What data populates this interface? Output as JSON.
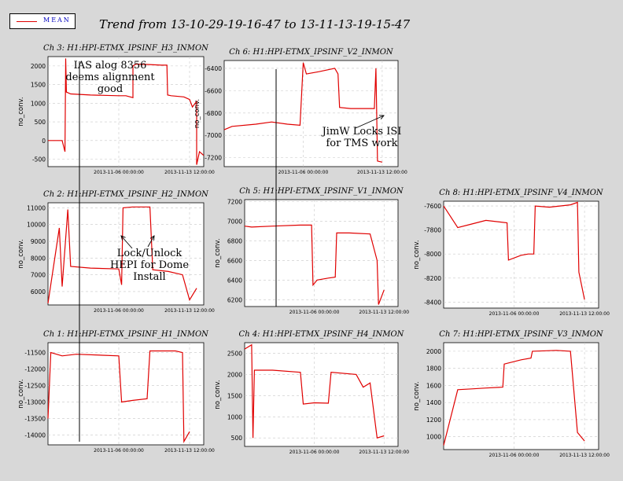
{
  "legend": {
    "label": "MEAN",
    "color": "#e00000"
  },
  "title": "Trend from 13-10-29-19-16-47 to 13-11-13-19-15-47",
  "annotations": [
    {
      "lines": [
        "IAS alog 8356",
        "deems alignment",
        "good"
      ]
    },
    {
      "lines": [
        "JimW Locks ISI",
        "for TMS work"
      ]
    },
    {
      "lines": [
        "Lock/Unlock",
        "HEPI for Dome",
        "Install"
      ]
    }
  ],
  "chart_data": [
    {
      "type": "line",
      "title": "Ch 3: H1:HPI-ETMX_IPSINF_H3_INMON",
      "ylabel": "no_conv.",
      "yticks": [
        -500,
        0,
        500,
        1000,
        1500,
        2000
      ],
      "ylim": [
        -700,
        2250
      ],
      "xticks": [
        "2013-11-06 00:00:00",
        "2013-11-13 12:00:00"
      ],
      "series": [
        {
          "values": [
            [
              0,
              0
            ],
            [
              0.1,
              0
            ],
            [
              0.12,
              -300
            ],
            [
              0.125,
              2200
            ],
            [
              0.13,
              1300
            ],
            [
              0.16,
              1250
            ],
            [
              0.3,
              1220
            ],
            [
              0.5,
              1200
            ],
            [
              0.55,
              1200
            ],
            [
              0.6,
              1150
            ],
            [
              0.6,
              2000
            ],
            [
              0.62,
              2050
            ],
            [
              0.7,
              2040
            ],
            [
              0.8,
              2020
            ],
            [
              0.84,
              2020
            ],
            [
              0.845,
              1220
            ],
            [
              0.87,
              1200
            ],
            [
              0.96,
              1170
            ],
            [
              1.0,
              1100
            ],
            [
              1.02,
              900
            ],
            [
              1.05,
              1050
            ],
            [
              1.05,
              -650
            ],
            [
              1.07,
              -300
            ],
            [
              1.1,
              -400
            ]
          ]
        }
      ]
    },
    {
      "type": "line",
      "title": "Ch 6: H1:HPI-ETMX_IPSINF_V2_INMON",
      "ylabel": "no_conv.",
      "yticks": [
        -7200,
        -7000,
        -6800,
        -6600,
        -6400
      ],
      "ylim": [
        -7280,
        -6330
      ],
      "xticks": [
        "2013-11-06 00:00:00",
        "2013-11-13 12:00:00"
      ],
      "series": [
        {
          "values": [
            [
              0,
              -6950
            ],
            [
              0.05,
              -6920
            ],
            [
              0.2,
              -6900
            ],
            [
              0.3,
              -6880
            ],
            [
              0.4,
              -6900
            ],
            [
              0.48,
              -6910
            ],
            [
              0.5,
              -6350
            ],
            [
              0.52,
              -6450
            ],
            [
              0.6,
              -6430
            ],
            [
              0.7,
              -6400
            ],
            [
              0.72,
              -6450
            ],
            [
              0.73,
              -6750
            ],
            [
              0.8,
              -6760
            ],
            [
              0.95,
              -6760
            ],
            [
              0.96,
              -6400
            ],
            [
              0.97,
              -7230
            ],
            [
              1.0,
              -7240
            ]
          ]
        }
      ]
    },
    {
      "type": "line",
      "title": "Ch 2: H1:HPI-ETMX_IPSINF_H2_INMON",
      "ylabel": "no_conv.",
      "yticks": [
        6000,
        7000,
        8000,
        9000,
        10000,
        11000
      ],
      "ylim": [
        5200,
        11300
      ],
      "xticks": [
        "2013-11-06 00:00:00",
        "2013-11-13 12:00:00"
      ],
      "series": [
        {
          "values": [
            [
              0,
              5300
            ],
            [
              0.08,
              9800
            ],
            [
              0.1,
              6300
            ],
            [
              0.14,
              10900
            ],
            [
              0.16,
              7500
            ],
            [
              0.3,
              7400
            ],
            [
              0.5,
              7350
            ],
            [
              0.52,
              6400
            ],
            [
              0.53,
              11000
            ],
            [
              0.6,
              11050
            ],
            [
              0.72,
              11050
            ],
            [
              0.74,
              7300
            ],
            [
              0.85,
              7200
            ],
            [
              0.95,
              7000
            ],
            [
              1.0,
              5500
            ],
            [
              1.05,
              6200
            ]
          ]
        }
      ]
    },
    {
      "type": "line",
      "title": "Ch 5: H1:HPI-ETMX_IPSINF_V1_INMON",
      "ylabel": "no_conv.",
      "yticks": [
        6200,
        6400,
        6600,
        6800,
        7000,
        7200
      ],
      "ylim": [
        6130,
        7220
      ],
      "xticks": [
        "2013-11-06 00:00:00",
        "2013-11-13 12:00:00"
      ],
      "series": [
        {
          "values": [
            [
              0,
              6950
            ],
            [
              0.05,
              6940
            ],
            [
              0.2,
              6950
            ],
            [
              0.4,
              6960
            ],
            [
              0.48,
              6960
            ],
            [
              0.49,
              6350
            ],
            [
              0.52,
              6400
            ],
            [
              0.6,
              6420
            ],
            [
              0.65,
              6430
            ],
            [
              0.66,
              6880
            ],
            [
              0.75,
              6880
            ],
            [
              0.9,
              6870
            ],
            [
              0.95,
              6600
            ],
            [
              0.96,
              6150
            ],
            [
              1.0,
              6300
            ]
          ]
        }
      ]
    },
    {
      "type": "line",
      "title": "Ch 8: H1:HPI-ETMX_IPSINF_V4_INMON",
      "ylabel": "no_conv.",
      "yticks": [
        -8400,
        -8200,
        -8000,
        -7800,
        -7600
      ],
      "ylim": [
        -8450,
        -7560
      ],
      "xticks": [
        "2013-11-06 00:00:00",
        "2013-11-13 12:00:00"
      ],
      "series": [
        {
          "values": [
            [
              0,
              -7600
            ],
            [
              0.1,
              -7780
            ],
            [
              0.2,
              -7750
            ],
            [
              0.3,
              -7720
            ],
            [
              0.45,
              -7740
            ],
            [
              0.46,
              -8050
            ],
            [
              0.55,
              -8010
            ],
            [
              0.6,
              -8000
            ],
            [
              0.64,
              -8000
            ],
            [
              0.65,
              -7600
            ],
            [
              0.75,
              -7610
            ],
            [
              0.9,
              -7590
            ],
            [
              0.95,
              -7570
            ],
            [
              0.96,
              -8150
            ],
            [
              1.0,
              -8380
            ]
          ]
        }
      ]
    },
    {
      "type": "line",
      "title": "Ch 1: H1:HPI-ETMX_IPSINF_H1_INMON",
      "ylabel": "no_conv.",
      "yticks": [
        -14000,
        -13500,
        -13000,
        -12500,
        -12000,
        -11500
      ],
      "ylim": [
        -14300,
        -11200
      ],
      "xticks": [
        "2013-11-06 00:00:00",
        "2013-11-13 12:00:00"
      ],
      "series": [
        {
          "values": [
            [
              0,
              -13500
            ],
            [
              0.02,
              -11500
            ],
            [
              0.1,
              -11600
            ],
            [
              0.2,
              -11550
            ],
            [
              0.5,
              -11600
            ],
            [
              0.52,
              -13000
            ],
            [
              0.6,
              -12950
            ],
            [
              0.7,
              -12900
            ],
            [
              0.72,
              -11450
            ],
            [
              0.9,
              -11450
            ],
            [
              0.95,
              -11500
            ],
            [
              0.96,
              -14200
            ],
            [
              1.0,
              -13900
            ]
          ]
        }
      ]
    },
    {
      "type": "line",
      "title": "Ch 4: H1:HPI-ETMX_IPSINF_H4_INMON",
      "ylabel": "no_conv.",
      "yticks": [
        500,
        1000,
        1500,
        2000,
        2500
      ],
      "ylim": [
        300,
        2750
      ],
      "xticks": [
        "2013-11-06 00:00:00",
        "2013-11-13 12:00:00"
      ],
      "series": [
        {
          "values": [
            [
              0,
              2600
            ],
            [
              0.05,
              2700
            ],
            [
              0.06,
              500
            ],
            [
              0.07,
              2100
            ],
            [
              0.2,
              2100
            ],
            [
              0.4,
              2050
            ],
            [
              0.42,
              1300
            ],
            [
              0.5,
              1330
            ],
            [
              0.6,
              1320
            ],
            [
              0.62,
              2050
            ],
            [
              0.8,
              2000
            ],
            [
              0.85,
              1700
            ],
            [
              0.9,
              1800
            ],
            [
              0.95,
              500
            ],
            [
              1.0,
              550
            ]
          ]
        }
      ]
    },
    {
      "type": "line",
      "title": "Ch 7: H1:HPI-ETMX_IPSINF_V3_INMON",
      "ylabel": "no_conv.",
      "yticks": [
        1000,
        1200,
        1400,
        1600,
        1800,
        2000
      ],
      "ylim": [
        850,
        2100
      ],
      "xticks": [
        "2013-11-06 00:00:00",
        "2013-11-13 12:00:00"
      ],
      "series": [
        {
          "values": [
            [
              0,
              900
            ],
            [
              0.1,
              1550
            ],
            [
              0.2,
              1560
            ],
            [
              0.3,
              1570
            ],
            [
              0.42,
              1580
            ],
            [
              0.43,
              1850
            ],
            [
              0.55,
              1900
            ],
            [
              0.62,
              1920
            ],
            [
              0.63,
              2000
            ],
            [
              0.8,
              2010
            ],
            [
              0.9,
              2000
            ],
            [
              0.95,
              1050
            ],
            [
              1.0,
              950
            ]
          ]
        }
      ]
    }
  ]
}
